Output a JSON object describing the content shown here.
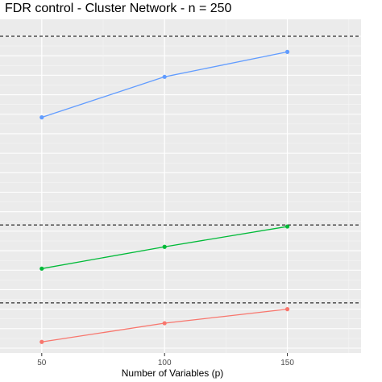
{
  "chart_data": {
    "type": "line",
    "title": "FDR control - Cluster Network - n = 250",
    "xlabel": "Number of Variables (p)",
    "ylabel": "",
    "x": [
      50,
      100,
      150
    ],
    "x_ticks": [
      "50",
      "100",
      "150"
    ],
    "xlim": [
      33,
      180
    ],
    "ylim": [
      0,
      1
    ],
    "grid": true,
    "legend": "none",
    "series": [
      {
        "color": "#f8766d",
        "values": [
          0.02,
          0.08,
          0.125
        ]
      },
      {
        "color": "#00ba38",
        "values": [
          0.255,
          0.325,
          0.39
        ]
      },
      {
        "color": "#619cff",
        "values": [
          0.74,
          0.87,
          0.95
        ]
      }
    ],
    "reference_lines": [
      {
        "y": 0.145,
        "style": "dashed",
        "color": "#000000"
      },
      {
        "y": 0.395,
        "style": "dashed",
        "color": "#000000"
      },
      {
        "y": 1.0,
        "style": "dashed",
        "color": "#000000"
      }
    ]
  }
}
